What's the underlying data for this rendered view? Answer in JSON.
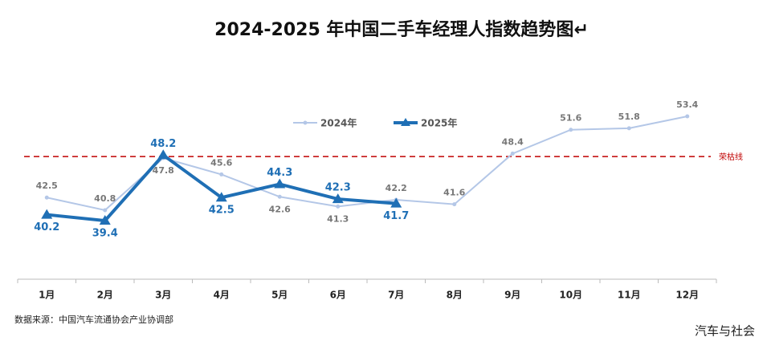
{
  "chart_data": {
    "type": "line",
    "title": "2024-2025 年中国二手车经理人指数趋势图↵",
    "categories": [
      "1月",
      "2月",
      "3月",
      "4月",
      "5月",
      "6月",
      "7月",
      "8月",
      "9月",
      "10月",
      "11月",
      "12月"
    ],
    "series": [
      {
        "name": "2024年",
        "color": "#b4c7e7",
        "values": [
          42.5,
          40.8,
          47.8,
          45.6,
          42.6,
          41.3,
          42.2,
          41.6,
          48.4,
          51.6,
          51.8,
          53.4
        ]
      },
      {
        "name": "2025年",
        "color": "#1f6fb5",
        "values": [
          40.2,
          39.4,
          48.2,
          42.5,
          44.3,
          42.3,
          41.7,
          null,
          null,
          null,
          null,
          null
        ]
      }
    ],
    "reference_line": {
      "label": "荣枯线",
      "value": 48,
      "color": "#c00000"
    },
    "source": "数据来源：中国汽车流通协会产业协调部",
    "watermark": "汽车与社会"
  }
}
